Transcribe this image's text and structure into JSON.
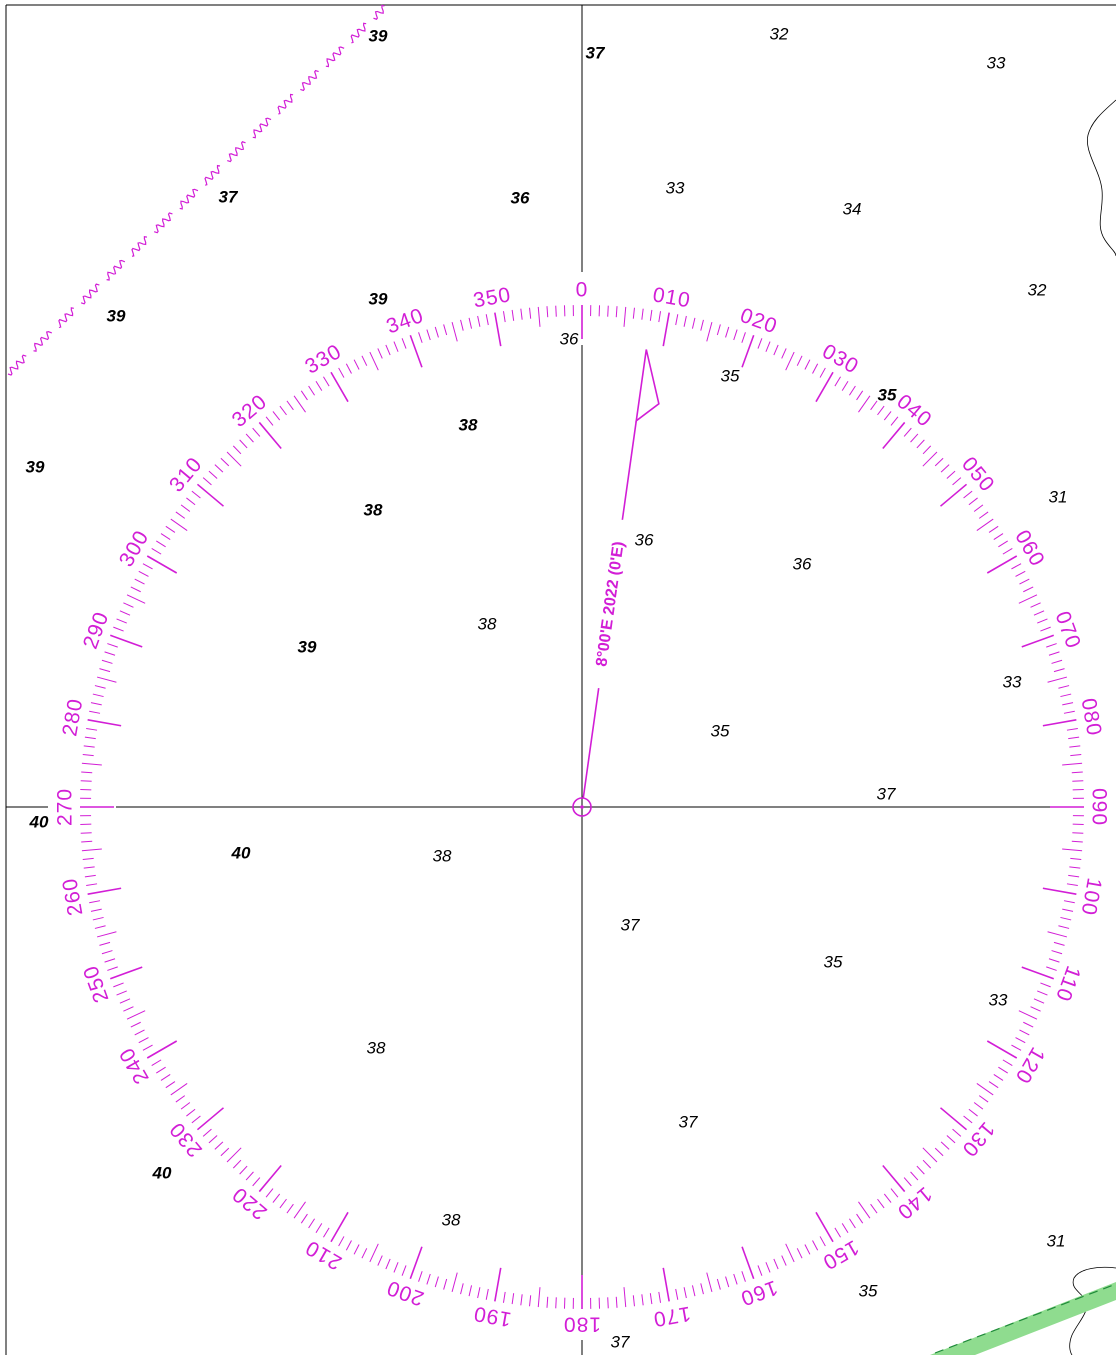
{
  "colors": {
    "magenta": "#d21ed6",
    "black": "#000000",
    "water": "#ffffff",
    "green_band": "#8fdc8f",
    "green_dash": "#1f8a3a"
  },
  "compass_rose": {
    "variation_label": "8°00'E 2022 (0'E)",
    "variation_deg": 8,
    "labels": [
      "0",
      "010",
      "020",
      "030",
      "040",
      "050",
      "060",
      "070",
      "080",
      "090",
      "100",
      "110",
      "120",
      "130",
      "140",
      "150",
      "160",
      "170",
      "180",
      "190",
      "200",
      "210",
      "220",
      "230",
      "240",
      "250",
      "260",
      "270",
      "280",
      "290",
      "300",
      "310",
      "320",
      "330",
      "340",
      "350"
    ]
  },
  "soundings": [
    {
      "value": "39",
      "style": "bold"
    },
    {
      "value": "37",
      "style": "bold"
    },
    {
      "value": "32",
      "style": "regular"
    },
    {
      "value": "33",
      "style": "regular"
    },
    {
      "value": "37",
      "style": "bold"
    },
    {
      "value": "36",
      "style": "bold"
    },
    {
      "value": "33",
      "style": "regular"
    },
    {
      "value": "34",
      "style": "regular"
    },
    {
      "value": "39",
      "style": "bold"
    },
    {
      "value": "39",
      "style": "bold"
    },
    {
      "value": "32",
      "style": "regular"
    },
    {
      "value": "36",
      "style": "regular"
    },
    {
      "value": "35",
      "style": "regular"
    },
    {
      "value": "35",
      "style": "bold"
    },
    {
      "value": "38",
      "style": "bold"
    },
    {
      "value": "39",
      "style": "bold"
    },
    {
      "value": "31",
      "style": "regular"
    },
    {
      "value": "38",
      "style": "bold"
    },
    {
      "value": "36",
      "style": "regular"
    },
    {
      "value": "36",
      "style": "regular"
    },
    {
      "value": "38",
      "style": "regular"
    },
    {
      "value": "39",
      "style": "bold"
    },
    {
      "value": "33",
      "style": "regular"
    },
    {
      "value": "35",
      "style": "regular"
    },
    {
      "value": "37",
      "style": "regular"
    },
    {
      "value": "40",
      "style": "bold"
    },
    {
      "value": "40",
      "style": "bold"
    },
    {
      "value": "38",
      "style": "regular"
    },
    {
      "value": "37",
      "style": "regular"
    },
    {
      "value": "35",
      "style": "regular"
    },
    {
      "value": "33",
      "style": "regular"
    },
    {
      "value": "38",
      "style": "regular"
    },
    {
      "value": "37",
      "style": "regular"
    },
    {
      "value": "40",
      "style": "bold"
    },
    {
      "value": "38",
      "style": "regular"
    },
    {
      "value": "31",
      "style": "regular"
    },
    {
      "value": "35",
      "style": "regular"
    },
    {
      "value": "37",
      "style": "regular"
    }
  ]
}
